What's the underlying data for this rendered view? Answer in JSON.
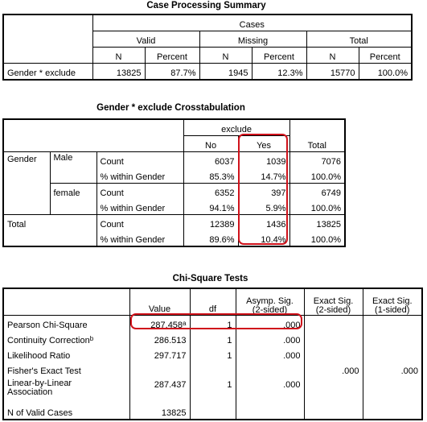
{
  "case_processing": {
    "title": "Case Processing Summary",
    "cases_label": "Cases",
    "groups": [
      "Valid",
      "Missing",
      "Total"
    ],
    "col_n": "N",
    "col_percent": "Percent",
    "row_label": "Gender * exclude",
    "values": [
      "13825",
      "87.7%",
      "1945",
      "12.3%",
      "15770",
      "100.0%"
    ]
  },
  "crosstab": {
    "title": "Gender * exclude Crosstabulation",
    "exclude_label": "exclude",
    "col_no": "No",
    "col_yes": "Yes",
    "col_total": "Total",
    "gender_label": "Gender",
    "male_label": "Male",
    "female_label": "female",
    "total_label": "Total",
    "count_label": "Count",
    "pct_label": "% within Gender",
    "male": {
      "count": [
        "6037",
        "1039",
        "7076"
      ],
      "pct": [
        "85.3%",
        "14.7%",
        "100.0%"
      ]
    },
    "female": {
      "count": [
        "6352",
        "397",
        "6749"
      ],
      "pct": [
        "94.1%",
        "5.9%",
        "100.0%"
      ]
    },
    "total": {
      "count": [
        "12389",
        "1436",
        "13825"
      ],
      "pct": [
        "89.6%",
        "10.4%",
        "100.0%"
      ]
    }
  },
  "chisq": {
    "title": "Chi-Square Tests",
    "col_value": "Value",
    "col_df": "df",
    "col_asymp_1": "Asymp. Sig.",
    "col_asymp_2": "(2-sided)",
    "col_exact2_1": "Exact Sig.",
    "col_exact2_2": "(2-sided)",
    "col_exact1_1": "Exact Sig.",
    "col_exact1_2": "(1-sided)",
    "pearson": {
      "label": "Pearson Chi-Square",
      "value": "287.458",
      "sup": "a",
      "df": "1",
      "asymp": ".000"
    },
    "continuity": {
      "label": "Continuity Correction",
      "sup": "b",
      "value": "286.513",
      "df": "1",
      "asymp": ".000"
    },
    "likelihood": {
      "label": "Likelihood Ratio",
      "value": "297.717",
      "df": "1",
      "asymp": ".000"
    },
    "fisher": {
      "label": "Fisher's Exact Test",
      "exact2": ".000",
      "exact1": ".000"
    },
    "linear": {
      "label_1": "Linear-by-Linear",
      "label_2": "Association",
      "value": "287.437",
      "df": "1",
      "asymp": ".000"
    },
    "nvalid": {
      "label": "N of Valid Cases",
      "value": "13825"
    }
  },
  "highlight_color": "#d0121b"
}
